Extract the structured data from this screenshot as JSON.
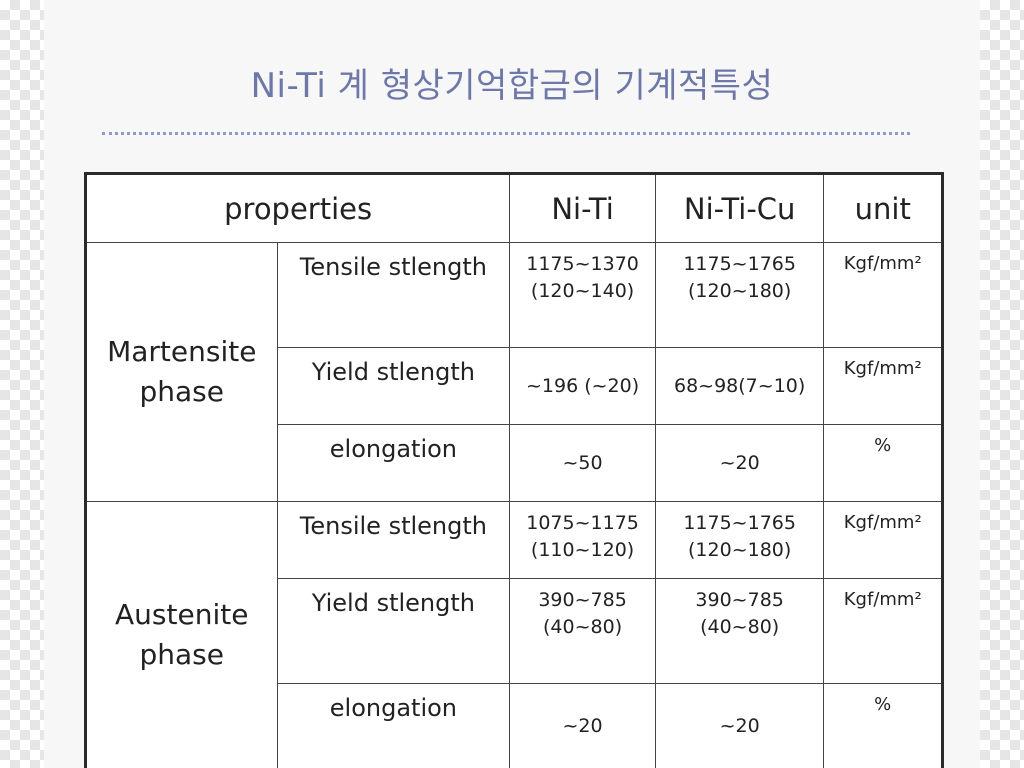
{
  "slide": {
    "title": "Ni-Ti 계 형상기억합금의 기계적특성"
  },
  "table": {
    "header": {
      "properties": "properties",
      "col1": "Ni-Ti",
      "col2": "Ni-Ti-Cu",
      "unit": "unit"
    },
    "martensite": {
      "phase_line1": "Martensite",
      "phase_line2": "phase",
      "tensile": {
        "label": "Tensile stlength",
        "niti_line1": "1175~1370",
        "niti_line2": "(120~140)",
        "nitcu_line1": "1175~1765",
        "nitcu_line2": "(120~180)",
        "unit": "Kgf/mm²"
      },
      "yield": {
        "label": "Yield stlength",
        "niti": "~196 (~20)",
        "nitcu": "68~98(7~10)",
        "unit": "Kgf/mm²"
      },
      "elongation": {
        "label": "elongation",
        "niti": "~50",
        "nitcu": "~20",
        "unit": "%"
      }
    },
    "austenite": {
      "phase_line1": "Austenite",
      "phase_line2": "phase",
      "tensile": {
        "label": "Tensile stlength",
        "niti_line1": "1075~1175",
        "niti_line2": "(110~120)",
        "nitcu_line1": "1175~1765",
        "nitcu_line2": "(120~180)",
        "unit": "Kgf/mm²"
      },
      "yield": {
        "label": "Yield stlength",
        "niti_line1": "390~785",
        "niti_line2": "(40~80)",
        "nitcu_line1": "390~785",
        "nitcu_line2": "(40~80)",
        "unit": "Kgf/mm²"
      },
      "elongation": {
        "label": "elongation",
        "niti": "~20",
        "nitcu": "~20",
        "unit": "%"
      }
    }
  }
}
